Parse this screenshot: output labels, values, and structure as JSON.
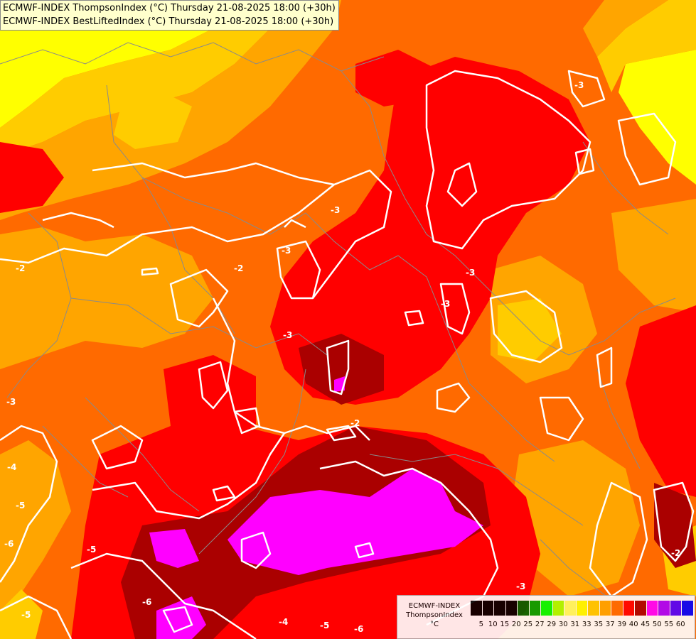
{
  "header": {
    "line1": "ECMWF-INDEX ThompsonIndex (°C) Thursday 21-08-2025 18:00 (+30h)",
    "line2": "ECMWF-INDEX BestLiftedIndex (°C) Thursday 21-08-2025 18:00 (+30h)"
  },
  "legend": {
    "title_line1": "ECMWF-INDEX",
    "title_line2": "ThompsonIndex",
    "title_line3": "°C",
    "bins": [
      {
        "label": "5",
        "color": "#000000"
      },
      {
        "label": "10",
        "color": "#000000"
      },
      {
        "label": "15",
        "color": "#000000"
      },
      {
        "label": "20",
        "color": "#000000"
      },
      {
        "label": "25",
        "color": "#006400"
      },
      {
        "label": "27",
        "color": "#00a000"
      },
      {
        "label": "29",
        "color": "#00ff00"
      },
      {
        "label": "30",
        "color": "#aaff00"
      },
      {
        "label": "31",
        "color": "#ffff66"
      },
      {
        "label": "33",
        "color": "#ffff00"
      },
      {
        "label": "35",
        "color": "#ffcc00"
      },
      {
        "label": "37",
        "color": "#ffa500"
      },
      {
        "label": "39",
        "color": "#ff6a00"
      },
      {
        "label": "40",
        "color": "#ff0000"
      },
      {
        "label": "45",
        "color": "#aa0000"
      },
      {
        "label": "50",
        "color": "#ff00ff"
      },
      {
        "label": "55",
        "color": "#aa00ff"
      },
      {
        "label": "60",
        "color": "#5000ff"
      },
      {
        "label": "",
        "color": "#0000ff"
      }
    ]
  },
  "contour_labels": [
    "-2",
    "-3",
    "-3",
    "-2",
    "-2",
    "-3",
    "-3",
    "-3",
    "-3",
    "-3",
    "-4",
    "-5",
    "-6",
    "-5",
    "-6",
    "-5",
    "-4",
    "-5",
    "-6",
    "-2",
    "-3"
  ]
}
